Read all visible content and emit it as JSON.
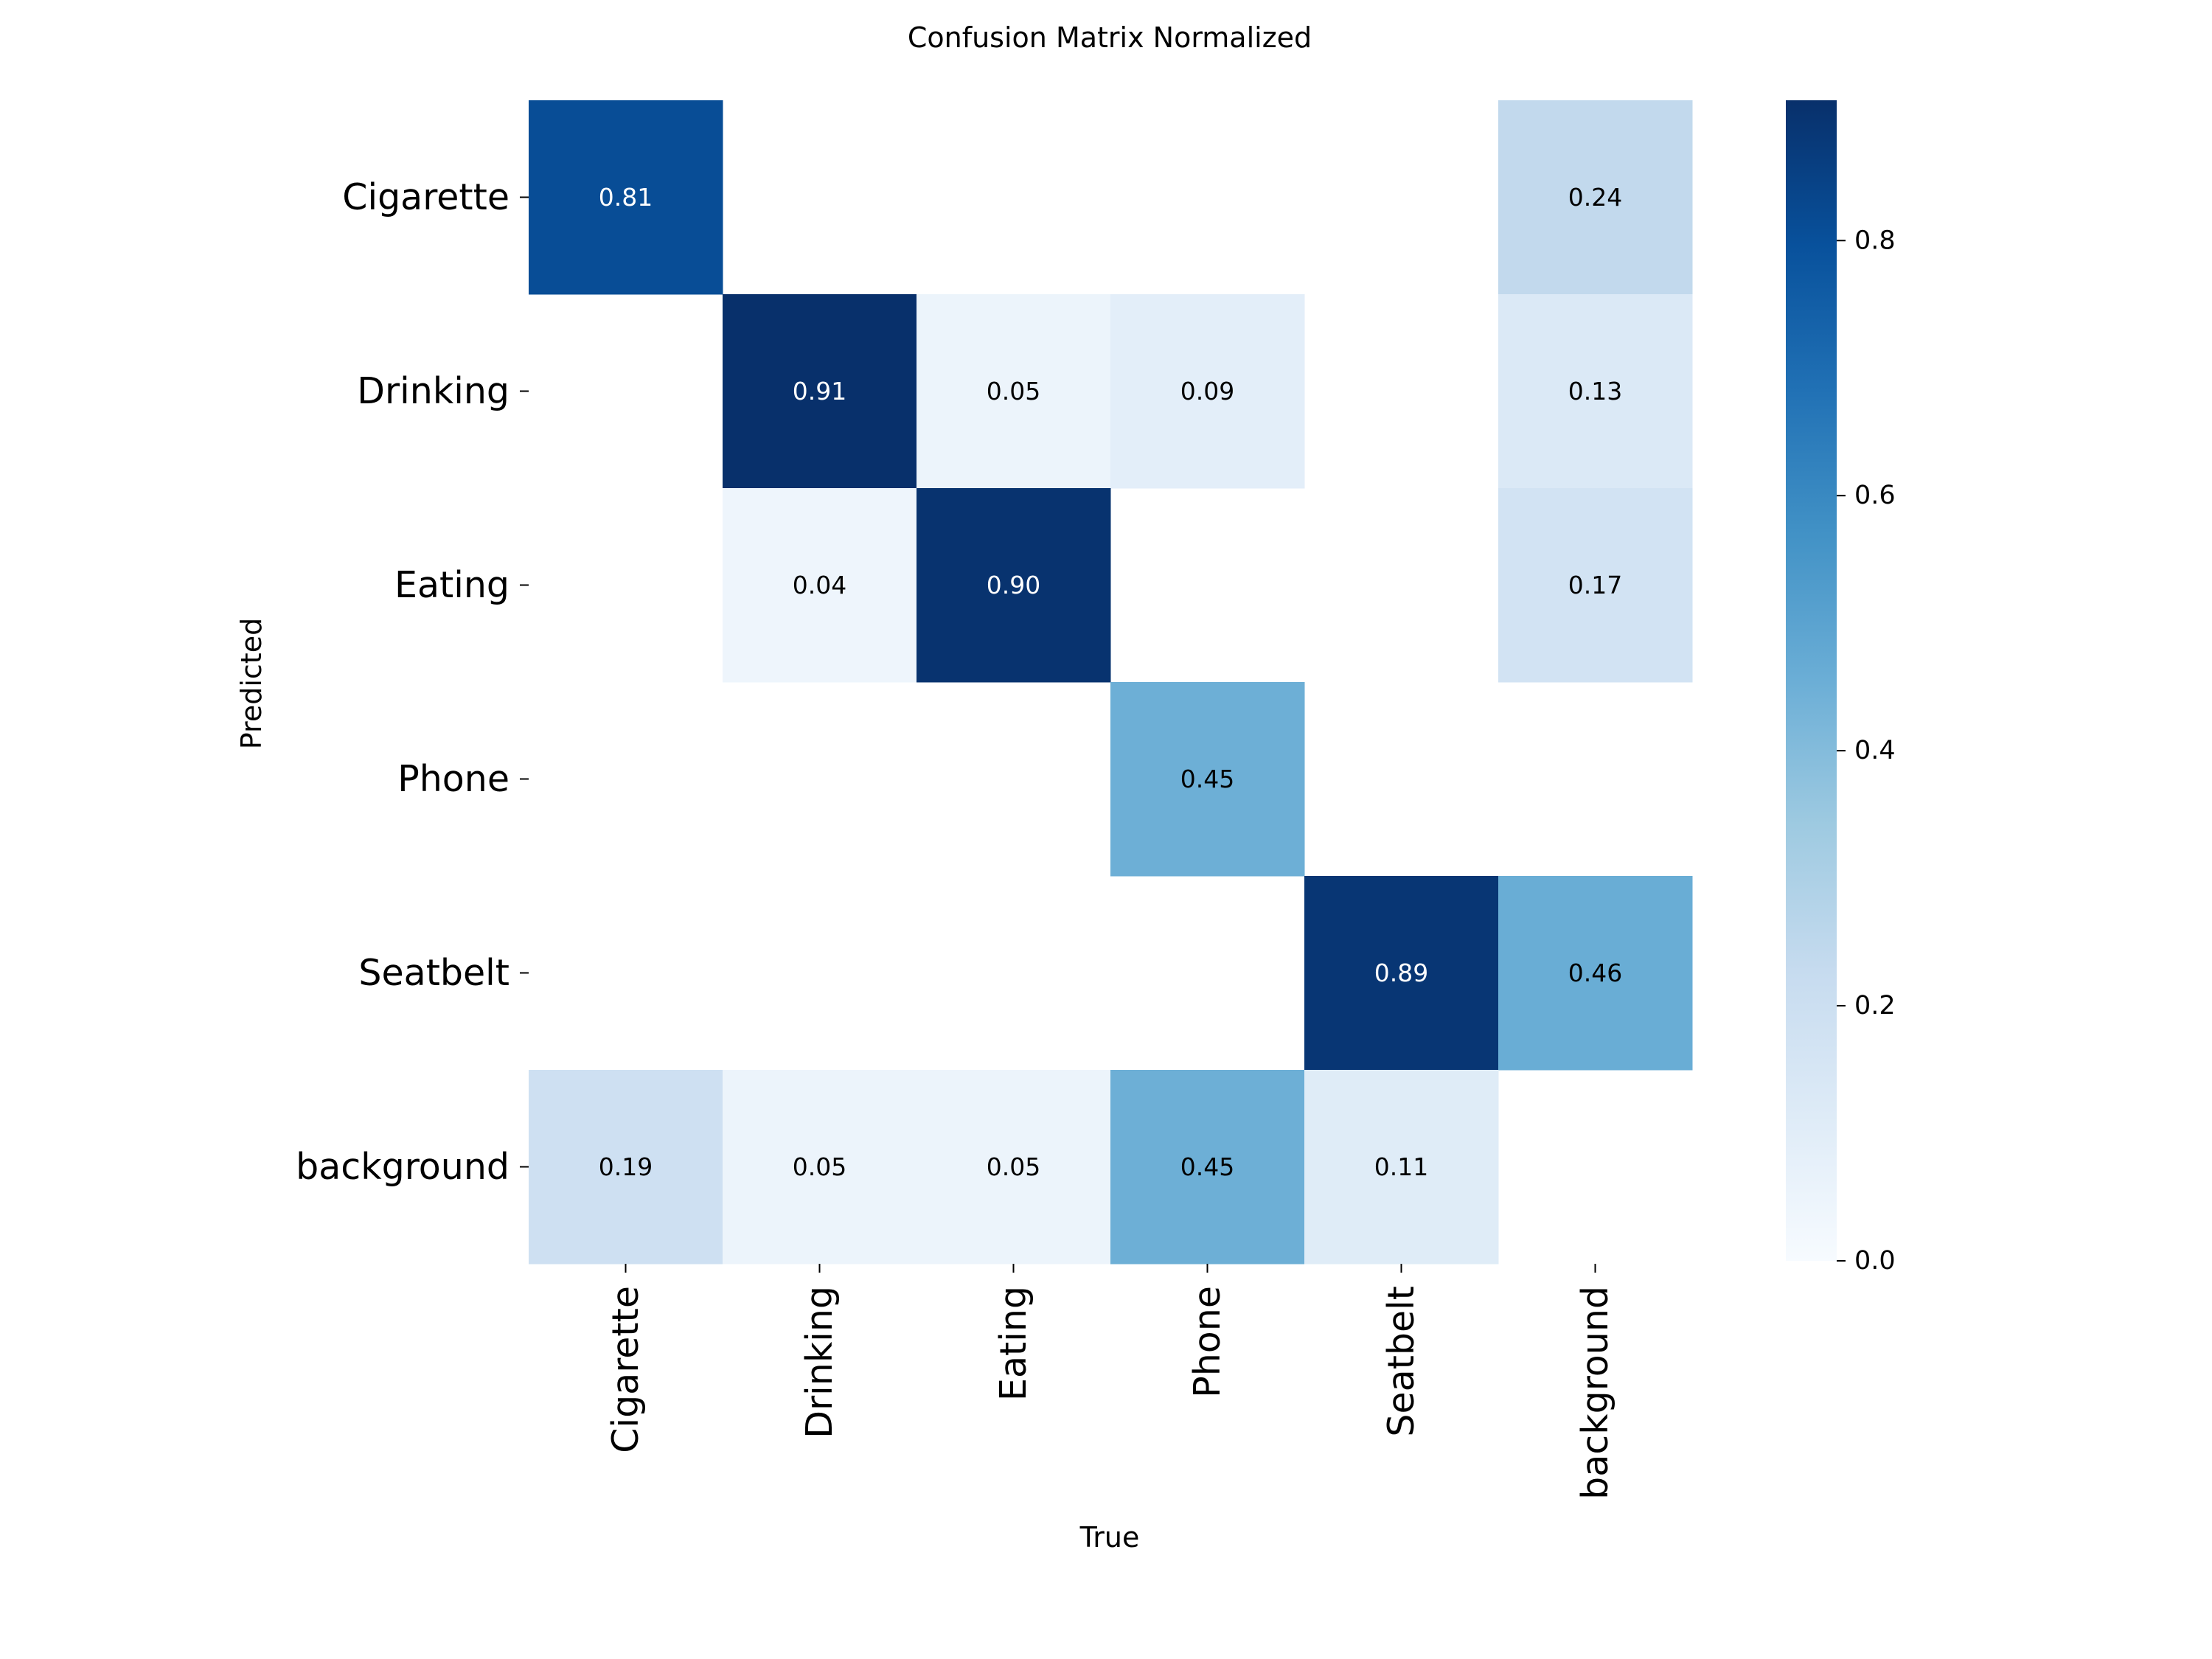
{
  "chart_data": {
    "type": "heatmap",
    "title": "Confusion Matrix Normalized",
    "xlabel": "True",
    "ylabel": "Predicted",
    "x_categories": [
      "Cigarette",
      "Drinking",
      "Eating",
      "Phone",
      "Seatbelt",
      "background"
    ],
    "y_categories": [
      "Cigarette",
      "Drinking",
      "Eating",
      "Phone",
      "Seatbelt",
      "background"
    ],
    "values": [
      [
        0.81,
        null,
        null,
        null,
        null,
        0.24
      ],
      [
        null,
        0.91,
        0.05,
        0.09,
        null,
        0.13
      ],
      [
        null,
        0.04,
        0.9,
        null,
        null,
        0.17
      ],
      [
        null,
        null,
        null,
        0.45,
        null,
        null
      ],
      [
        null,
        null,
        null,
        null,
        0.89,
        0.46
      ],
      [
        0.19,
        0.05,
        0.05,
        0.45,
        0.11,
        null
      ]
    ],
    "colormap": "Blues",
    "colorbar_range": [
      0.0,
      0.91
    ],
    "colorbar_ticks": [
      0.0,
      0.2,
      0.4,
      0.6,
      0.8
    ],
    "colorbar_tick_labels": [
      "0.0",
      "0.2",
      "0.4",
      "0.6",
      "0.8"
    ],
    "grid": false,
    "legend": "colorbar-right"
  }
}
